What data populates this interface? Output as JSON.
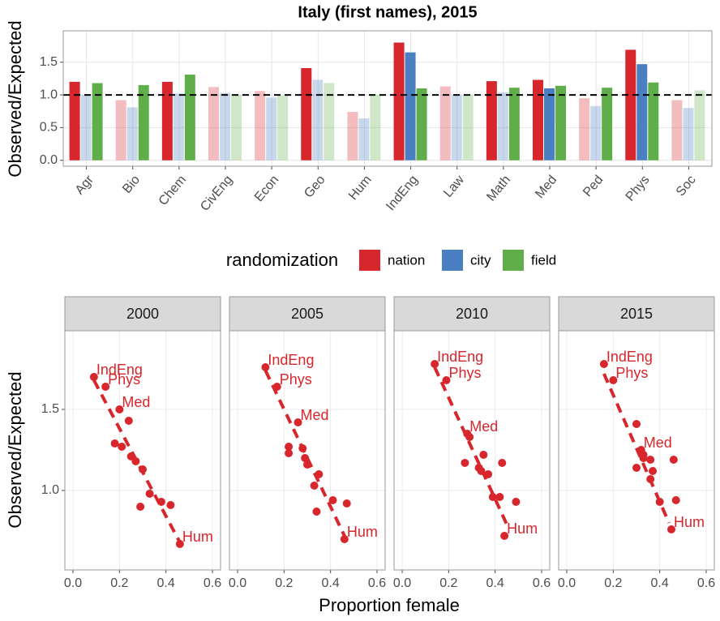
{
  "chart_data": [
    {
      "type": "bar",
      "title": "Italy (first names), 2015",
      "ylabel": "Observed/Expected",
      "categories": [
        "Agr",
        "Bio",
        "Chem",
        "CivEng",
        "Econ",
        "Geo",
        "Hum",
        "IndEng",
        "Law",
        "Math",
        "Med",
        "Ped",
        "Phys",
        "Soc"
      ],
      "legend_title": "randomization",
      "series": [
        {
          "name": "nation",
          "color": "#d7262c",
          "values": [
            1.2,
            0.92,
            1.2,
            1.12,
            1.06,
            1.41,
            0.74,
            1.8,
            1.13,
            1.21,
            1.23,
            0.95,
            1.69,
            0.92
          ],
          "opacity": [
            1,
            0.3,
            1,
            0.3,
            0.3,
            1,
            0.3,
            1,
            0.3,
            1,
            1,
            0.3,
            1,
            0.3
          ]
        },
        {
          "name": "city",
          "color": "#4a7fc1",
          "values": [
            1.0,
            0.81,
            1.02,
            1.03,
            0.96,
            1.23,
            0.64,
            1.65,
            1.0,
            1.04,
            1.1,
            0.83,
            1.47,
            0.8
          ],
          "opacity": [
            0.3,
            0.3,
            0.3,
            0.3,
            0.3,
            0.3,
            0.3,
            1,
            0.3,
            0.3,
            1,
            0.3,
            1,
            0.3
          ]
        },
        {
          "name": "field",
          "color": "#5fae4a",
          "values": [
            1.18,
            1.15,
            1.31,
            1.0,
            0.99,
            1.18,
            1.0,
            1.1,
            1.0,
            1.11,
            1.14,
            1.11,
            1.19,
            1.07
          ],
          "opacity": [
            1,
            1,
            1,
            0.3,
            0.3,
            0.3,
            0.3,
            1,
            0.3,
            1,
            1,
            1,
            1,
            0.3
          ]
        }
      ],
      "ylim": [
        -0.09,
        1.98
      ],
      "yticks": [
        {
          "value": 0,
          "label": "0.0"
        },
        0.5,
        {
          "value": 1,
          "label": "1.0"
        },
        1.5
      ],
      "hline": 1,
      "grid": true
    },
    {
      "type": "scatter",
      "xlabel": "Proportion female",
      "ylabel": "Observed/Expected",
      "color": "#d7262c",
      "xlim": [
        -0.035,
        0.635
      ],
      "ylim": [
        0.51,
        1.985
      ],
      "xticks": [
        {
          "value": 0,
          "label": "0.0"
        },
        0.2,
        0.4,
        0.6
      ],
      "yticks": [
        {
          "value": 1,
          "label": "1.0"
        },
        1.5
      ],
      "grid": true,
      "panels": [
        {
          "title": "2000",
          "x": [
            0.09,
            0.14,
            0.2,
            0.24,
            0.18,
            0.21,
            0.25,
            0.27,
            0.3,
            0.33,
            0.38,
            0.42,
            0.29,
            0.46
          ],
          "y": [
            1.7,
            1.64,
            1.5,
            1.43,
            1.29,
            1.27,
            1.21,
            1.18,
            1.13,
            0.98,
            0.93,
            0.91,
            0.9,
            0.67
          ],
          "labels": [
            "IndEng",
            "Phys",
            "Med",
            null,
            null,
            null,
            null,
            null,
            null,
            null,
            null,
            null,
            null,
            "Hum"
          ],
          "trend": {
            "x": [
              0.09,
              0.46
            ],
            "y": [
              1.68,
              0.68
            ]
          }
        },
        {
          "title": "2005",
          "x": [
            0.12,
            0.17,
            0.26,
            0.22,
            0.22,
            0.28,
            0.29,
            0.3,
            0.35,
            0.33,
            0.34,
            0.41,
            0.47,
            0.46
          ],
          "y": [
            1.76,
            1.64,
            1.42,
            1.27,
            1.23,
            1.26,
            1.2,
            1.16,
            1.1,
            1.03,
            0.87,
            0.94,
            0.92,
            0.7
          ],
          "labels": [
            "IndEng",
            "Phys",
            "Med",
            null,
            null,
            null,
            null,
            null,
            null,
            null,
            null,
            null,
            null,
            "Hum"
          ],
          "trend": {
            "x": [
              0.12,
              0.46
            ],
            "y": [
              1.74,
              0.72
            ]
          }
        },
        {
          "title": "2010",
          "x": [
            0.14,
            0.19,
            0.28,
            0.35,
            0.27,
            0.33,
            0.34,
            0.37,
            0.43,
            0.42,
            0.39,
            0.49,
            0.29,
            0.44
          ],
          "y": [
            1.78,
            1.68,
            1.35,
            1.22,
            1.17,
            1.14,
            1.12,
            1.1,
            1.17,
            0.96,
            0.96,
            0.93,
            1.33,
            0.72
          ],
          "labels": [
            "IndEng",
            "Phys",
            "Med",
            null,
            null,
            null,
            null,
            null,
            null,
            null,
            null,
            null,
            null,
            "Hum"
          ],
          "trend": {
            "x": [
              0.14,
              0.46
            ],
            "y": [
              1.76,
              0.76
            ]
          }
        },
        {
          "title": "2015",
          "x": [
            0.16,
            0.2,
            0.32,
            0.3,
            0.33,
            0.33,
            0.36,
            0.3,
            0.37,
            0.36,
            0.4,
            0.46,
            0.47,
            0.45
          ],
          "y": [
            1.78,
            1.68,
            1.25,
            1.41,
            1.22,
            1.2,
            1.19,
            1.14,
            1.12,
            1.07,
            0.93,
            1.19,
            0.94,
            0.76
          ],
          "labels": [
            "IndEng",
            "Phys",
            "Med",
            null,
            null,
            null,
            null,
            null,
            null,
            null,
            null,
            null,
            null,
            "Hum"
          ],
          "trend": {
            "x": [
              0.16,
              0.44
            ],
            "y": [
              1.72,
              0.8
            ]
          }
        }
      ]
    }
  ]
}
